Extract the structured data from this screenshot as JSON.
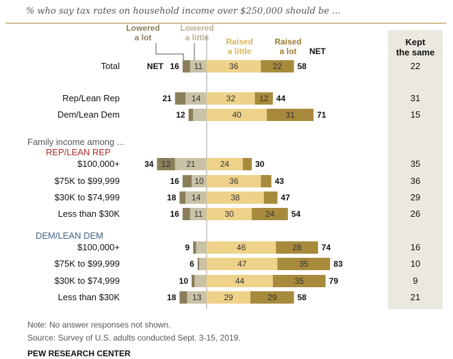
{
  "chart_data": {
    "type": "bar",
    "subtitle": "% who say tax rates on household income over $250,000 should be ...",
    "legend": {
      "lowered_a_lot": "Lowered a lot",
      "lowered_a_little": "Lowered a little",
      "raised_a_little": "Raised a little",
      "raised_a_lot": "Raised a lot",
      "net": "NET",
      "kept_same": "Kept the same"
    },
    "series": [
      {
        "key": "lowered_a_lot",
        "name": "Lowered a lot",
        "color": "#8a7e5b"
      },
      {
        "key": "lowered_a_little",
        "name": "Lowered a little",
        "color": "#c9c2a6"
      },
      {
        "key": "raised_a_little",
        "name": "Raised a little",
        "color": "#efd28a"
      },
      {
        "key": "raised_a_lot",
        "name": "Raised a lot",
        "color": "#a88a3c"
      }
    ],
    "colors": {
      "legend_lowered_a_lot": "#8a7e5b",
      "legend_lowered_a_little": "#b8b092",
      "legend_raised_a_little": "#d9b45a",
      "legend_raised_a_lot": "#9c7d2e",
      "kept_same_bg": "#ebe8df",
      "rep_label": "#b02a2a",
      "dem_label": "#3e5f83",
      "divider_top": "#c8a96a",
      "center_line": "#999999"
    },
    "section_labels": {
      "family_income": "Family income among ...",
      "rep": "REP/LEAN REP",
      "dem": "DEM/LEAN DEM"
    },
    "rows": [
      {
        "label": "Total",
        "net_prefix": "NET",
        "lowered_net": 16,
        "lowered_a_lot": 5,
        "lowered_a_little": 11,
        "raised_a_little": 36,
        "raised_a_lot": 22,
        "raised_net": 58,
        "raised_net_suffix": "NET",
        "kept_same": 22
      },
      {
        "label": "Rep/Lean Rep",
        "lowered_net": 21,
        "lowered_a_lot": 7,
        "lowered_a_little": 14,
        "raised_a_little": 32,
        "raised_a_lot": 12,
        "raised_net": 44,
        "kept_same": 31
      },
      {
        "label": "Dem/Lean Dem",
        "lowered_net": 12,
        "lowered_a_lot": 3,
        "lowered_a_little": 9,
        "raised_a_little": 40,
        "raised_a_lot": 31,
        "raised_net": 71,
        "kept_same": 15
      },
      {
        "label": "$100,000+",
        "lowered_net": 34,
        "lowered_a_lot": 12,
        "lowered_a_little": 21,
        "raised_a_little": 24,
        "raised_a_lot": 6,
        "raised_net": 30,
        "kept_same": 35
      },
      {
        "label": "$75K to $99,999",
        "lowered_net": 16,
        "lowered_a_lot": 6,
        "lowered_a_little": 10,
        "raised_a_little": 36,
        "raised_a_lot": 7,
        "raised_net": 43,
        "kept_same": 36
      },
      {
        "label": "$30K to $74,999",
        "lowered_net": 18,
        "lowered_a_lot": 4,
        "lowered_a_little": 14,
        "raised_a_little": 38,
        "raised_a_lot": 9,
        "raised_net": 47,
        "kept_same": 29
      },
      {
        "label": "Less than $30K",
        "lowered_net": 16,
        "lowered_a_lot": 5,
        "lowered_a_little": 11,
        "raised_a_little": 30,
        "raised_a_lot": 24,
        "raised_net": 54,
        "kept_same": 26
      },
      {
        "label": "$100,000+",
        "lowered_net": 9,
        "lowered_a_lot": 2,
        "lowered_a_little": 7,
        "raised_a_little": 46,
        "raised_a_lot": 28,
        "raised_net": 74,
        "kept_same": 16
      },
      {
        "label": "$75K to $99,999",
        "lowered_net": 6,
        "lowered_a_lot": 1,
        "lowered_a_little": 5,
        "raised_a_little": 47,
        "raised_a_lot": 35,
        "raised_net": 83,
        "kept_same": 10
      },
      {
        "label": "$30K to $74,999",
        "lowered_net": 10,
        "lowered_a_lot": 2,
        "lowered_a_little": 8,
        "raised_a_little": 44,
        "raised_a_lot": 35,
        "raised_net": 79,
        "kept_same": 9
      },
      {
        "label": "Less than $30K",
        "lowered_net": 18,
        "lowered_a_lot": 5,
        "lowered_a_little": 13,
        "raised_a_little": 29,
        "raised_a_lot": 29,
        "raised_net": 58,
        "kept_same": 21
      }
    ],
    "visible_segment_labels": [
      {
        "row": 0,
        "lowered_a_little": true,
        "raised_a_little": true,
        "raised_a_lot": true
      },
      {
        "row": 1,
        "lowered_a_little": true,
        "raised_a_little": true,
        "raised_a_lot": true
      },
      {
        "row": 2,
        "raised_a_little": true,
        "raised_a_lot": true
      },
      {
        "row": 3,
        "lowered_a_lot": true,
        "lowered_a_little": true,
        "raised_a_little": true
      },
      {
        "row": 4,
        "lowered_a_little": true,
        "raised_a_little": true
      },
      {
        "row": 5,
        "lowered_a_little": true,
        "raised_a_little": true
      },
      {
        "row": 6,
        "lowered_a_little": true,
        "raised_a_little": true,
        "raised_a_lot": true
      },
      {
        "row": 7,
        "raised_a_little": true,
        "raised_a_lot": true
      },
      {
        "row": 8,
        "raised_a_little": true,
        "raised_a_lot": true
      },
      {
        "row": 9,
        "raised_a_little": true,
        "raised_a_lot": true
      },
      {
        "row": 10,
        "lowered_a_little": true,
        "raised_a_little": true,
        "raised_a_lot": true
      }
    ]
  },
  "footer": {
    "note": "Note: No answer responses not shown.",
    "source": "Source: Survey of U.S. adults conducted Sept. 3-15, 2019.",
    "brand": "PEW RESEARCH CENTER"
  }
}
